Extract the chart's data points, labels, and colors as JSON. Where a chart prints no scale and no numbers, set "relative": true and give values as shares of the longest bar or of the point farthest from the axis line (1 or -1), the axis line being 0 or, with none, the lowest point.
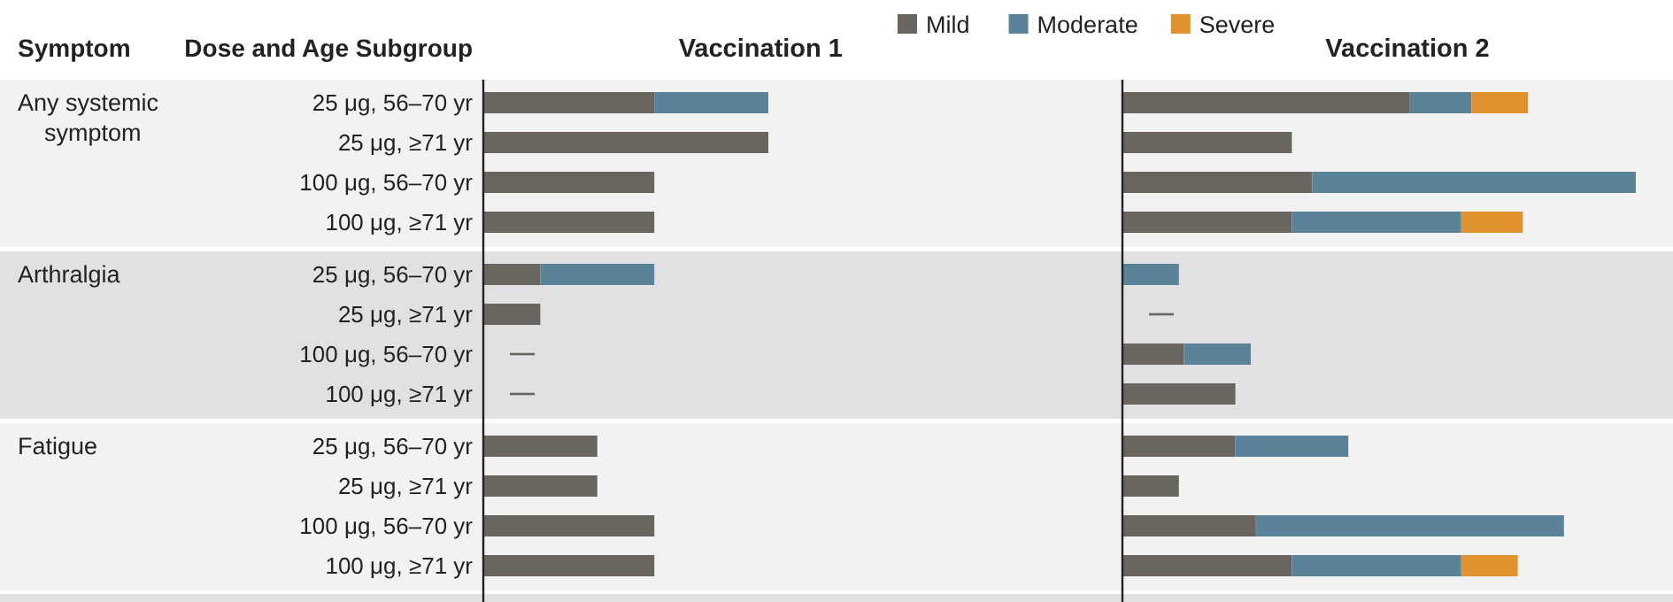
{
  "chart_data": [
    {
      "type": "bar",
      "title": "Vaccination 1",
      "orientation": "horizontal",
      "stacked": true,
      "relative": true,
      "categories": [
        "25 μg, 56–70 yr",
        "25 μg, ≥71 yr",
        "100 μg, 56–70 yr",
        "100 μg, ≥71 yr",
        "25 μg, 56–70 yr",
        "25 μg, ≥71 yr",
        "100 μg, 56–70 yr",
        "100 μg, ≥71 yr",
        "25 μg, 56–70 yr",
        "25 μg, ≥71 yr",
        "100 μg, 56–70 yr",
        "100 μg, ≥71 yr"
      ],
      "series": [
        {
          "color": "#6b655f",
          "values": [
            0.6,
            1,
            0.6,
            0.6,
            0.2,
            0.2,
            0,
            0,
            0.4,
            0.4,
            0.6,
            0.6
          ]
        },
        {
          "color": "#5a8399",
          "values": [
            0.4,
            0,
            0,
            0,
            0.4,
            0,
            0,
            0,
            0,
            0,
            0,
            0
          ]
        }
      ],
      "annotations": [
        "Symptom",
        "Dose and Age Subgroup",
        "Any systemic symptom",
        "Arthralgia",
        "Fatigue"
      ]
    },
    {
      "type": "bar",
      "title": "Vaccination 2",
      "orientation": "horizontal",
      "stacked": true,
      "relative": true,
      "legend": "top",
      "categories": [
        null,
        null,
        null,
        null,
        null,
        null,
        null,
        null,
        null,
        null,
        null,
        null
      ],
      "series": [
        {
          "name": "Mild",
          "color": "#6b655f",
          "values": [
            0.56,
            0.33,
            0.37,
            0.33,
            0,
            0,
            0.12,
            0.22,
            0.22,
            0.11,
            0.26,
            0.33
          ]
        },
        {
          "name": "Moderate",
          "color": "#5a8399",
          "values": [
            0.12,
            0,
            0.63,
            0.33,
            0.11,
            0,
            0.13,
            0,
            0.22,
            0,
            0.6,
            0.33
          ]
        },
        {
          "name": "Severe",
          "color": "#e0922f",
          "values": [
            0.11,
            0,
            0,
            0.12,
            0,
            0,
            0,
            0,
            0,
            0,
            0,
            0.11
          ]
        }
      ]
    }
  ]
}
